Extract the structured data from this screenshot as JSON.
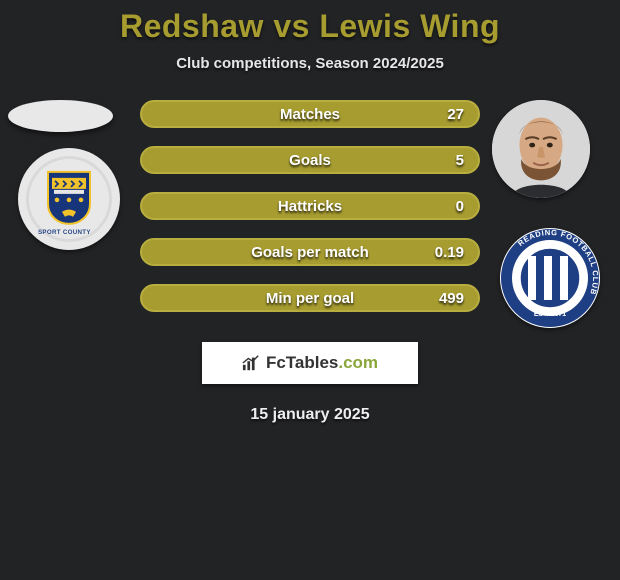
{
  "title": "Redshaw vs Lewis Wing",
  "subtitle": "Club competitions, Season 2024/2025",
  "date": "15 january 2025",
  "brand": {
    "name": "FcTables",
    "suffix": ".com"
  },
  "accent_color": "#a79c30",
  "bg_color": "#222325",
  "bars": [
    {
      "label": "Matches",
      "right_value": "27",
      "left_fill_pct": 0
    },
    {
      "label": "Goals",
      "right_value": "5",
      "left_fill_pct": 0
    },
    {
      "label": "Hattricks",
      "right_value": "0",
      "left_fill_pct": 0
    },
    {
      "label": "Goals per match",
      "right_value": "0.19",
      "left_fill_pct": 0
    },
    {
      "label": "Min per goal",
      "right_value": "499",
      "left_fill_pct": 0
    }
  ],
  "crest_left": {
    "ring_text_top": "SPORT COUNTY",
    "shield_color": "#17357a",
    "accent": "#f2c22a"
  },
  "crest_right": {
    "ring_text": "READING FOOTBALL CLUB",
    "est": "EST. 1871",
    "ring_color": "#1f3f84",
    "stripe_colors": [
      "#1f3f84",
      "#ffffff"
    ]
  }
}
